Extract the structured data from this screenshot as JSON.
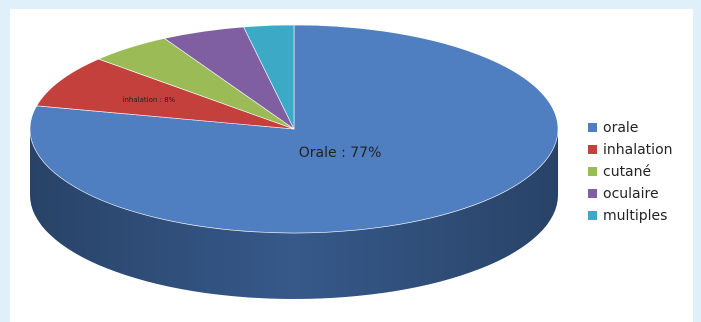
{
  "chart_data": {
    "type": "pie",
    "style": "3d",
    "start_angle_deg": 0,
    "direction": "clockwise",
    "slices": [
      {
        "label": "orale",
        "value": 77,
        "color": "#4f7fc0",
        "side_color": "#36598a",
        "data_label": "Orale : 77%"
      },
      {
        "label": "inhalation",
        "value": 8,
        "color": "#c4403d",
        "side_color": "#8e2c29",
        "data_label": "inhalation : 8%"
      },
      {
        "label": "cutané",
        "value": 5,
        "color": "#9bbb57",
        "side_color": "#6f873e",
        "data_label": ""
      },
      {
        "label": "oculaire",
        "value": 5,
        "color": "#7f5fa2",
        "side_color": "#5a4374",
        "data_label": ""
      },
      {
        "label": "multiples",
        "value": 3,
        "color": "#3ca9c7",
        "side_color": "#2a7890",
        "data_label": ""
      }
    ],
    "legend": {
      "position": "right"
    }
  },
  "legend": {
    "items": [
      {
        "label": "orale",
        "color": "#4f7fc0"
      },
      {
        "label": "inhalation",
        "color": "#c4403d"
      },
      {
        "label": "cutané",
        "color": "#9bbb57"
      },
      {
        "label": "oculaire",
        "color": "#7f5fa2"
      },
      {
        "label": "multiples",
        "color": "#3ca9c7"
      }
    ]
  }
}
